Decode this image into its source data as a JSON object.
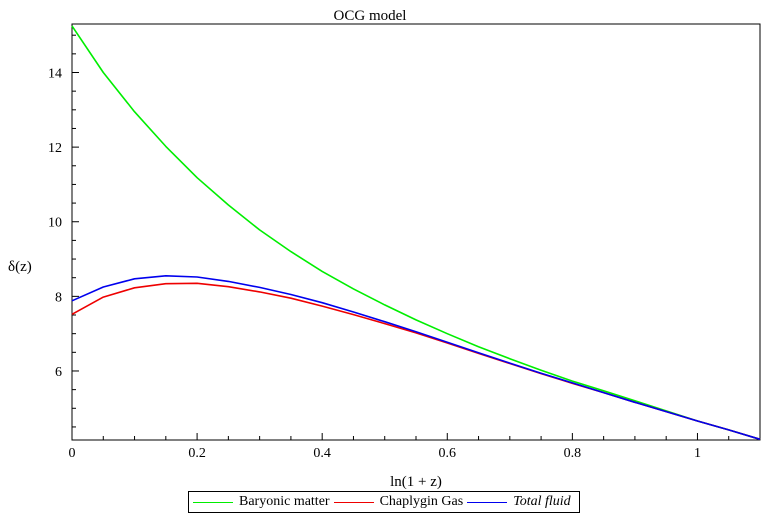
{
  "chart_data": {
    "type": "line",
    "title": "OCG model",
    "xlabel": "ln(1 + z)",
    "ylabel": "δ(z)",
    "xlim": [
      0,
      1.1
    ],
    "ylim": [
      4.15,
      15.3
    ],
    "x_ticks": [
      "0",
      "0.2",
      "0.4",
      "0.6",
      "0.8",
      "1"
    ],
    "y_ticks": [
      "6",
      "8",
      "10",
      "12",
      "14"
    ],
    "x": [
      0,
      0.05,
      0.1,
      0.15,
      0.2,
      0.25,
      0.3,
      0.35,
      0.4,
      0.45,
      0.5,
      0.55,
      0.6,
      0.65,
      0.7,
      0.75,
      0.8,
      0.85,
      0.9,
      0.95,
      1.0,
      1.05,
      1.1
    ],
    "series": [
      {
        "name": "Baryonic matter",
        "color": "#00ee00",
        "values": [
          15.25,
          14.0,
          12.95,
          12.02,
          11.18,
          10.45,
          9.78,
          9.2,
          8.67,
          8.2,
          7.77,
          7.37,
          7.0,
          6.65,
          6.33,
          6.02,
          5.73,
          5.47,
          5.2,
          4.93,
          4.66,
          4.42,
          4.17
        ]
      },
      {
        "name": "Chaplygin Gas",
        "color": "#ee0000",
        "values": [
          7.52,
          7.98,
          8.23,
          8.34,
          8.35,
          8.26,
          8.12,
          7.95,
          7.74,
          7.51,
          7.27,
          7.02,
          6.75,
          6.47,
          6.2,
          5.93,
          5.67,
          5.42,
          5.16,
          4.91,
          4.66,
          4.42,
          4.17
        ]
      },
      {
        "name": "Total fluid",
        "color": "#0000ee",
        "values": [
          7.88,
          8.25,
          8.47,
          8.55,
          8.52,
          8.4,
          8.24,
          8.05,
          7.83,
          7.58,
          7.32,
          7.05,
          6.77,
          6.49,
          6.21,
          5.94,
          5.68,
          5.42,
          5.16,
          4.91,
          4.66,
          4.42,
          4.17
        ]
      }
    ],
    "legend": {
      "placement": "bottom",
      "labels": [
        {
          "text": "Baryonic matter",
          "color": "#00ee00",
          "italic": false
        },
        {
          "text": "Chaplygin Gas",
          "color": "#ee0000",
          "italic": false
        },
        {
          "text": "Total fluid",
          "color": "#0000ee",
          "italic": true
        }
      ]
    }
  }
}
